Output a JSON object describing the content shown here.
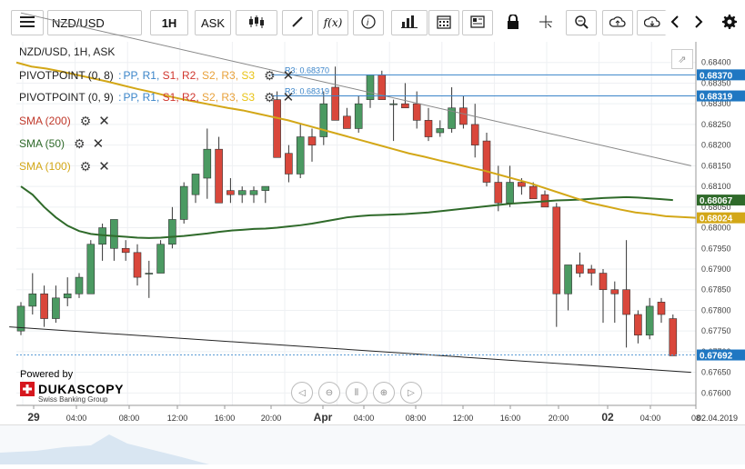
{
  "toolbar": {
    "menu_icon": "hamburger-icon",
    "symbol": "NZD/USD",
    "timeframe": "1H",
    "side": "ASK",
    "fx_label": "f(x)"
  },
  "chart_title": "NZD/USD, 1H, ASK",
  "indicators": [
    {
      "name": "PIVOTPOINT (0, 8)",
      "levels": [
        "PP,",
        "R1,",
        "S1,",
        "R2,",
        "S2,",
        "R3,",
        "S3"
      ],
      "level_colors": [
        "#3a84c9",
        "#3a84c9",
        "#d0362e",
        "#d0362e",
        "#e8a13a",
        "#e8a13a",
        "#e8c316"
      ]
    },
    {
      "name": "PIVOTPOINT (0, 9)",
      "levels": [
        "PP,",
        "R1,",
        "S1,",
        "R2,",
        "S2,",
        "R3,",
        "S3"
      ],
      "level_colors": [
        "#3a84c9",
        "#3a84c9",
        "#d0362e",
        "#d0362e",
        "#e8a13a",
        "#e8a13a",
        "#e8c316"
      ]
    },
    {
      "name": "SMA (200)",
      "color": "#c0392b"
    },
    {
      "name": "SMA (50)",
      "color": "#2f6a2a"
    },
    {
      "name": "SMA (100)",
      "color": "#d3a717"
    }
  ],
  "pivot_lines": [
    {
      "label": "R3: 0.68370",
      "value": 0.6837
    },
    {
      "label": "R3: 0.68319",
      "value": 0.68319
    }
  ],
  "price_labels": [
    {
      "text": "0.68370",
      "value": 0.6837,
      "color": "#1f77c2"
    },
    {
      "text": "0.68319",
      "value": 0.68319,
      "color": "#1f77c2"
    },
    {
      "text": "0.68067",
      "value": 0.68067,
      "color": "#2f6a2a"
    },
    {
      "text": "0.68024",
      "value": 0.68024,
      "color": "#d3a717"
    },
    {
      "text": "0.67692",
      "value": 0.67692,
      "color": "#1f77c2"
    }
  ],
  "y_ticks": [
    "0.68400",
    "0.68350",
    "0.68300",
    "0.68250",
    "0.68200",
    "0.68150",
    "0.68100",
    "0.68050",
    "0.68000",
    "0.67950",
    "0.67900",
    "0.67850",
    "0.67800",
    "0.67750",
    "0.67700",
    "0.67650",
    "0.67600"
  ],
  "x_ticks": [
    {
      "label": "29",
      "bold": true
    },
    {
      "label": "04:00"
    },
    {
      "label": "08:00"
    },
    {
      "label": "12:00"
    },
    {
      "label": "16:00"
    },
    {
      "label": "20:00"
    },
    {
      "label": "Apr",
      "bold": true
    },
    {
      "label": "04:00"
    },
    {
      "label": "08:00"
    },
    {
      "label": "12:00"
    },
    {
      "label": "16:00"
    },
    {
      "label": "20:00"
    },
    {
      "label": "02",
      "bold": true
    },
    {
      "label": "04:00"
    },
    {
      "label": "08"
    }
  ],
  "x_axis_end": "02.04.2019",
  "powered_by": "Powered by",
  "brand_name": "DUKASCOPY",
  "brand_sub": "Swiss Banking Group",
  "chart_data": {
    "type": "candlestick",
    "title": "NZD/USD, 1H, ASK",
    "ylim": [
      0.6757,
      0.6845
    ],
    "x_categories": [
      "29 00:00 .. 02 08:00"
    ],
    "candles": [
      {
        "o": 0.6775,
        "h": 0.6782,
        "l": 0.6774,
        "c": 0.6781
      },
      {
        "o": 0.6781,
        "h": 0.6789,
        "l": 0.6779,
        "c": 0.6784
      },
      {
        "o": 0.6784,
        "h": 0.6786,
        "l": 0.6776,
        "c": 0.6778
      },
      {
        "o": 0.6778,
        "h": 0.6786,
        "l": 0.6777,
        "c": 0.6783
      },
      {
        "o": 0.6783,
        "h": 0.6788,
        "l": 0.6781,
        "c": 0.6784
      },
      {
        "o": 0.6784,
        "h": 0.6789,
        "l": 0.6783,
        "c": 0.6788
      },
      {
        "o": 0.6784,
        "h": 0.6797,
        "l": 0.6784,
        "c": 0.6796
      },
      {
        "o": 0.6796,
        "h": 0.6801,
        "l": 0.6792,
        "c": 0.68
      },
      {
        "o": 0.6795,
        "h": 0.6802,
        "l": 0.6792,
        "c": 0.6802
      },
      {
        "o": 0.6795,
        "h": 0.6797,
        "l": 0.6792,
        "c": 0.6794
      },
      {
        "o": 0.6794,
        "h": 0.6796,
        "l": 0.6786,
        "c": 0.6788
      },
      {
        "o": 0.6789,
        "h": 0.6792,
        "l": 0.6783,
        "c": 0.6789
      },
      {
        "o": 0.6789,
        "h": 0.6797,
        "l": 0.6789,
        "c": 0.6796
      },
      {
        "o": 0.6796,
        "h": 0.6805,
        "l": 0.6795,
        "c": 0.6802
      },
      {
        "o": 0.6802,
        "h": 0.6811,
        "l": 0.6801,
        "c": 0.681
      },
      {
        "o": 0.6808,
        "h": 0.6813,
        "l": 0.6806,
        "c": 0.6813
      },
      {
        "o": 0.6812,
        "h": 0.6824,
        "l": 0.6807,
        "c": 0.6819
      },
      {
        "o": 0.6819,
        "h": 0.6822,
        "l": 0.6806,
        "c": 0.6806
      },
      {
        "o": 0.6809,
        "h": 0.6812,
        "l": 0.6806,
        "c": 0.6808
      },
      {
        "o": 0.6808,
        "h": 0.681,
        "l": 0.6806,
        "c": 0.6809
      },
      {
        "o": 0.6808,
        "h": 0.681,
        "l": 0.6806,
        "c": 0.6809
      },
      {
        "o": 0.6809,
        "h": 0.681,
        "l": 0.6806,
        "c": 0.681
      },
      {
        "o": 0.6831,
        "h": 0.6833,
        "l": 0.6817,
        "c": 0.6817
      },
      {
        "o": 0.6818,
        "h": 0.682,
        "l": 0.6811,
        "c": 0.6813
      },
      {
        "o": 0.6813,
        "h": 0.6825,
        "l": 0.6812,
        "c": 0.6822
      },
      {
        "o": 0.6822,
        "h": 0.6824,
        "l": 0.6816,
        "c": 0.682
      },
      {
        "o": 0.6822,
        "h": 0.6833,
        "l": 0.682,
        "c": 0.683
      },
      {
        "o": 0.6834,
        "h": 0.6839,
        "l": 0.6826,
        "c": 0.6826
      },
      {
        "o": 0.6827,
        "h": 0.6829,
        "l": 0.6824,
        "c": 0.6824
      },
      {
        "o": 0.6824,
        "h": 0.6832,
        "l": 0.6823,
        "c": 0.683
      },
      {
        "o": 0.6831,
        "h": 0.6837,
        "l": 0.6829,
        "c": 0.6837
      },
      {
        "o": 0.6837,
        "h": 0.6838,
        "l": 0.6831,
        "c": 0.6831
      },
      {
        "o": 0.683,
        "h": 0.6831,
        "l": 0.6821,
        "c": 0.683
      },
      {
        "o": 0.683,
        "h": 0.6835,
        "l": 0.6829,
        "c": 0.6829
      },
      {
        "o": 0.683,
        "h": 0.6833,
        "l": 0.6824,
        "c": 0.6826
      },
      {
        "o": 0.6826,
        "h": 0.6829,
        "l": 0.6821,
        "c": 0.6822
      },
      {
        "o": 0.6823,
        "h": 0.6826,
        "l": 0.6822,
        "c": 0.6824
      },
      {
        "o": 0.6824,
        "h": 0.6834,
        "l": 0.6823,
        "c": 0.6829
      },
      {
        "o": 0.6829,
        "h": 0.6832,
        "l": 0.6824,
        "c": 0.6825
      },
      {
        "o": 0.6825,
        "h": 0.683,
        "l": 0.6817,
        "c": 0.682
      },
      {
        "o": 0.6821,
        "h": 0.6823,
        "l": 0.681,
        "c": 0.6811
      },
      {
        "o": 0.6811,
        "h": 0.6815,
        "l": 0.6804,
        "c": 0.6806
      },
      {
        "o": 0.6806,
        "h": 0.6815,
        "l": 0.6805,
        "c": 0.6811
      },
      {
        "o": 0.6811,
        "h": 0.6812,
        "l": 0.6808,
        "c": 0.681
      },
      {
        "o": 0.681,
        "h": 0.6811,
        "l": 0.6807,
        "c": 0.6807
      },
      {
        "o": 0.6808,
        "h": 0.6809,
        "l": 0.6805,
        "c": 0.6805
      },
      {
        "o": 0.6805,
        "h": 0.6806,
        "l": 0.6776,
        "c": 0.6784
      },
      {
        "o": 0.6784,
        "h": 0.6791,
        "l": 0.678,
        "c": 0.6791
      },
      {
        "o": 0.6791,
        "h": 0.6794,
        "l": 0.6788,
        "c": 0.6789
      },
      {
        "o": 0.679,
        "h": 0.6791,
        "l": 0.6786,
        "c": 0.6789
      },
      {
        "o": 0.6789,
        "h": 0.679,
        "l": 0.6777,
        "c": 0.6785
      },
      {
        "o": 0.6785,
        "h": 0.6787,
        "l": 0.6777,
        "c": 0.6784
      },
      {
        "o": 0.6785,
        "h": 0.6797,
        "l": 0.6771,
        "c": 0.6779
      },
      {
        "o": 0.6779,
        "h": 0.678,
        "l": 0.6772,
        "c": 0.6774
      },
      {
        "o": 0.6774,
        "h": 0.6783,
        "l": 0.6773,
        "c": 0.6781
      },
      {
        "o": 0.6782,
        "h": 0.6783,
        "l": 0.6777,
        "c": 0.6779
      },
      {
        "o": 0.6778,
        "h": 0.6779,
        "l": 0.6769,
        "c": 0.6769
      }
    ],
    "sma_50": [
      0.681,
      0.6808,
      0.6805,
      0.68025,
      0.68005,
      0.67992,
      0.67985,
      0.67982,
      0.6798,
      0.67978,
      0.67976,
      0.67975,
      0.67976,
      0.67978,
      0.6798,
      0.67983,
      0.67986,
      0.6799,
      0.67993,
      0.67995,
      0.67997,
      0.67998,
      0.68,
      0.68003,
      0.68006,
      0.6801,
      0.68015,
      0.6802,
      0.68025,
      0.68028,
      0.6803,
      0.68031,
      0.68032,
      0.68033,
      0.68035,
      0.68037,
      0.6804,
      0.68043,
      0.68046,
      0.68049,
      0.68052,
      0.68055,
      0.68058,
      0.6806,
      0.68062,
      0.68064,
      0.68066,
      0.68067,
      0.68068,
      0.6807,
      0.68072,
      0.68073,
      0.68074,
      0.68073,
      0.68071,
      0.68069,
      0.68067
    ],
    "sma_100": [
      0.684,
      0.6839,
      0.68385,
      0.68378,
      0.6837,
      0.68362,
      0.68354,
      0.68345,
      0.68336,
      0.68328,
      0.68319,
      0.68311,
      0.68304,
      0.68297,
      0.6829,
      0.68284,
      0.68276,
      0.68268,
      0.6826,
      0.6825,
      0.6824,
      0.6823,
      0.6822,
      0.6821,
      0.682,
      0.6819,
      0.6818,
      0.68172,
      0.68163,
      0.68155,
      0.68146,
      0.68138,
      0.68128,
      0.68118,
      0.68108,
      0.68096,
      0.68084,
      0.68072,
      0.6806,
      0.68052,
      0.68044,
      0.68037,
      0.68033,
      0.68028,
      0.68026,
      0.68024
    ],
    "sma_100_start_index": 0,
    "trendlines": [
      {
        "color": "#888",
        "from": {
          "i": 0,
          "v": 0.6852
        },
        "to": {
          "i": 56,
          "v": 0.6815
        }
      },
      {
        "color": "#222",
        "from": {
          "i": -1,
          "v": 0.6776
        },
        "to": {
          "i": 56,
          "v": 0.6765
        }
      }
    ]
  }
}
